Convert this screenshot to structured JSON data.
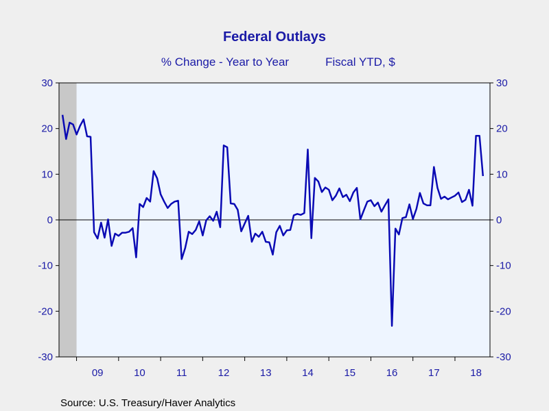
{
  "chart_data": {
    "type": "line",
    "title": "Federal Outlays",
    "subtitle_left": "% Change - Year to Year",
    "subtitle_right": "Fiscal YTD, $",
    "source": "Source:  U.S. Treasury/Haver Analytics",
    "x_start": 2008.583,
    "x_end": 2018.833,
    "ylim": [
      -30,
      30
    ],
    "yticks": [
      -30,
      -20,
      -10,
      0,
      10,
      20,
      30
    ],
    "yticklabels": [
      "-30",
      "-20",
      "-10",
      "0",
      "10",
      "20",
      "30"
    ],
    "xticklabels": [
      {
        "label": "09",
        "year": 2009
      },
      {
        "label": "10",
        "year": 2010
      },
      {
        "label": "11",
        "year": 2011
      },
      {
        "label": "12",
        "year": 2012
      },
      {
        "label": "13",
        "year": 2013
      },
      {
        "label": "14",
        "year": 2014
      },
      {
        "label": "15",
        "year": 2015
      },
      {
        "label": "16",
        "year": 2016
      },
      {
        "label": "17",
        "year": 2017
      },
      {
        "label": "18",
        "year": 2018
      }
    ],
    "recession": {
      "start": 2008.583,
      "end": 2009.0,
      "color": "#c8c8c8"
    },
    "series": [
      {
        "color": "#0a0ab4",
        "start": 2008.667,
        "step_months": 1,
        "values": [
          23.0,
          17.7,
          21.3,
          20.9,
          18.7,
          20.6,
          22.0,
          18.3,
          18.2,
          -2.7,
          -4.1,
          -0.6,
          -3.9,
          0.1,
          -5.7,
          -3.0,
          -3.5,
          -2.8,
          -2.8,
          -2.6,
          -1.8,
          -8.2,
          3.5,
          2.8,
          4.8,
          4.0,
          10.7,
          9.1,
          5.6,
          4.0,
          2.6,
          3.5,
          4.0,
          4.2,
          -8.6,
          -6.2,
          -2.6,
          -3.1,
          -2.2,
          -0.3,
          -3.4,
          -0.1,
          0.8,
          -0.2,
          1.8,
          -1.6,
          16.3,
          15.9,
          3.6,
          3.5,
          2.2,
          -2.5,
          -0.8,
          0.9,
          -4.8,
          -3.0,
          -3.7,
          -2.6,
          -4.8,
          -4.9,
          -7.6,
          -2.7,
          -1.3,
          -3.4,
          -2.3,
          -2.2,
          1.0,
          1.3,
          1.1,
          1.5,
          15.4,
          -4.0,
          9.2,
          8.4,
          6.1,
          7.1,
          6.6,
          4.3,
          5.3,
          6.9,
          5.0,
          5.5,
          4.1,
          6.0,
          7.0,
          0.1,
          2.1,
          4.0,
          4.3,
          3.0,
          3.8,
          1.8,
          3.2,
          4.5,
          -23.2,
          -1.9,
          -3.2,
          0.4,
          0.6,
          3.4,
          0.2,
          2.4,
          5.9,
          3.6,
          3.2,
          3.2,
          11.6,
          7.0,
          4.6,
          5.1,
          4.5,
          4.9,
          5.3,
          6.0,
          3.9,
          4.4,
          6.6,
          3.1,
          18.4,
          18.4,
          9.6
        ]
      }
    ]
  }
}
